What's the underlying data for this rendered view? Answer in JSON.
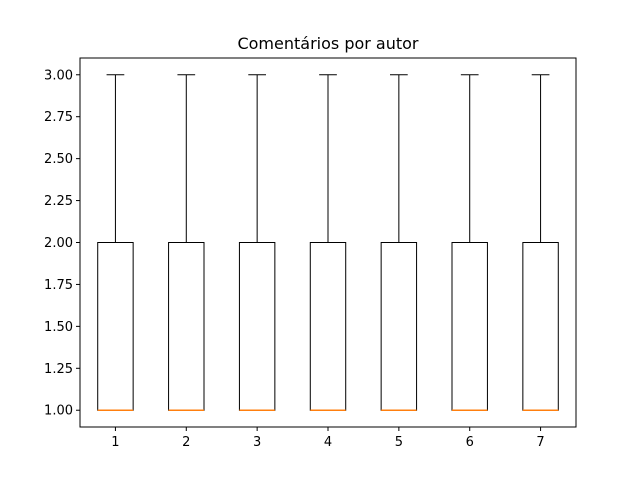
{
  "chart_data": {
    "type": "box",
    "title": "Comentários por autor",
    "xlabel": "",
    "ylabel": "",
    "categories": [
      "1",
      "2",
      "3",
      "4",
      "5",
      "6",
      "7"
    ],
    "boxes": [
      {
        "whisker_low": 1.0,
        "q1": 1.0,
        "median": 1.0,
        "q3": 2.0,
        "whisker_high": 3.0
      },
      {
        "whisker_low": 1.0,
        "q1": 1.0,
        "median": 1.0,
        "q3": 2.0,
        "whisker_high": 3.0
      },
      {
        "whisker_low": 1.0,
        "q1": 1.0,
        "median": 1.0,
        "q3": 2.0,
        "whisker_high": 3.0
      },
      {
        "whisker_low": 1.0,
        "q1": 1.0,
        "median": 1.0,
        "q3": 2.0,
        "whisker_high": 3.0
      },
      {
        "whisker_low": 1.0,
        "q1": 1.0,
        "median": 1.0,
        "q3": 2.0,
        "whisker_high": 3.0
      },
      {
        "whisker_low": 1.0,
        "q1": 1.0,
        "median": 1.0,
        "q3": 2.0,
        "whisker_high": 3.0
      },
      {
        "whisker_low": 1.0,
        "q1": 1.0,
        "median": 1.0,
        "q3": 2.0,
        "whisker_high": 3.0
      }
    ],
    "ylim": [
      0.9,
      3.1
    ],
    "yticks": [
      "1.00",
      "1.25",
      "1.50",
      "1.75",
      "2.00",
      "2.25",
      "2.50",
      "2.75",
      "3.00"
    ],
    "grid": false,
    "colors": {
      "box": "#000000",
      "median": "#ff7f0e"
    }
  }
}
